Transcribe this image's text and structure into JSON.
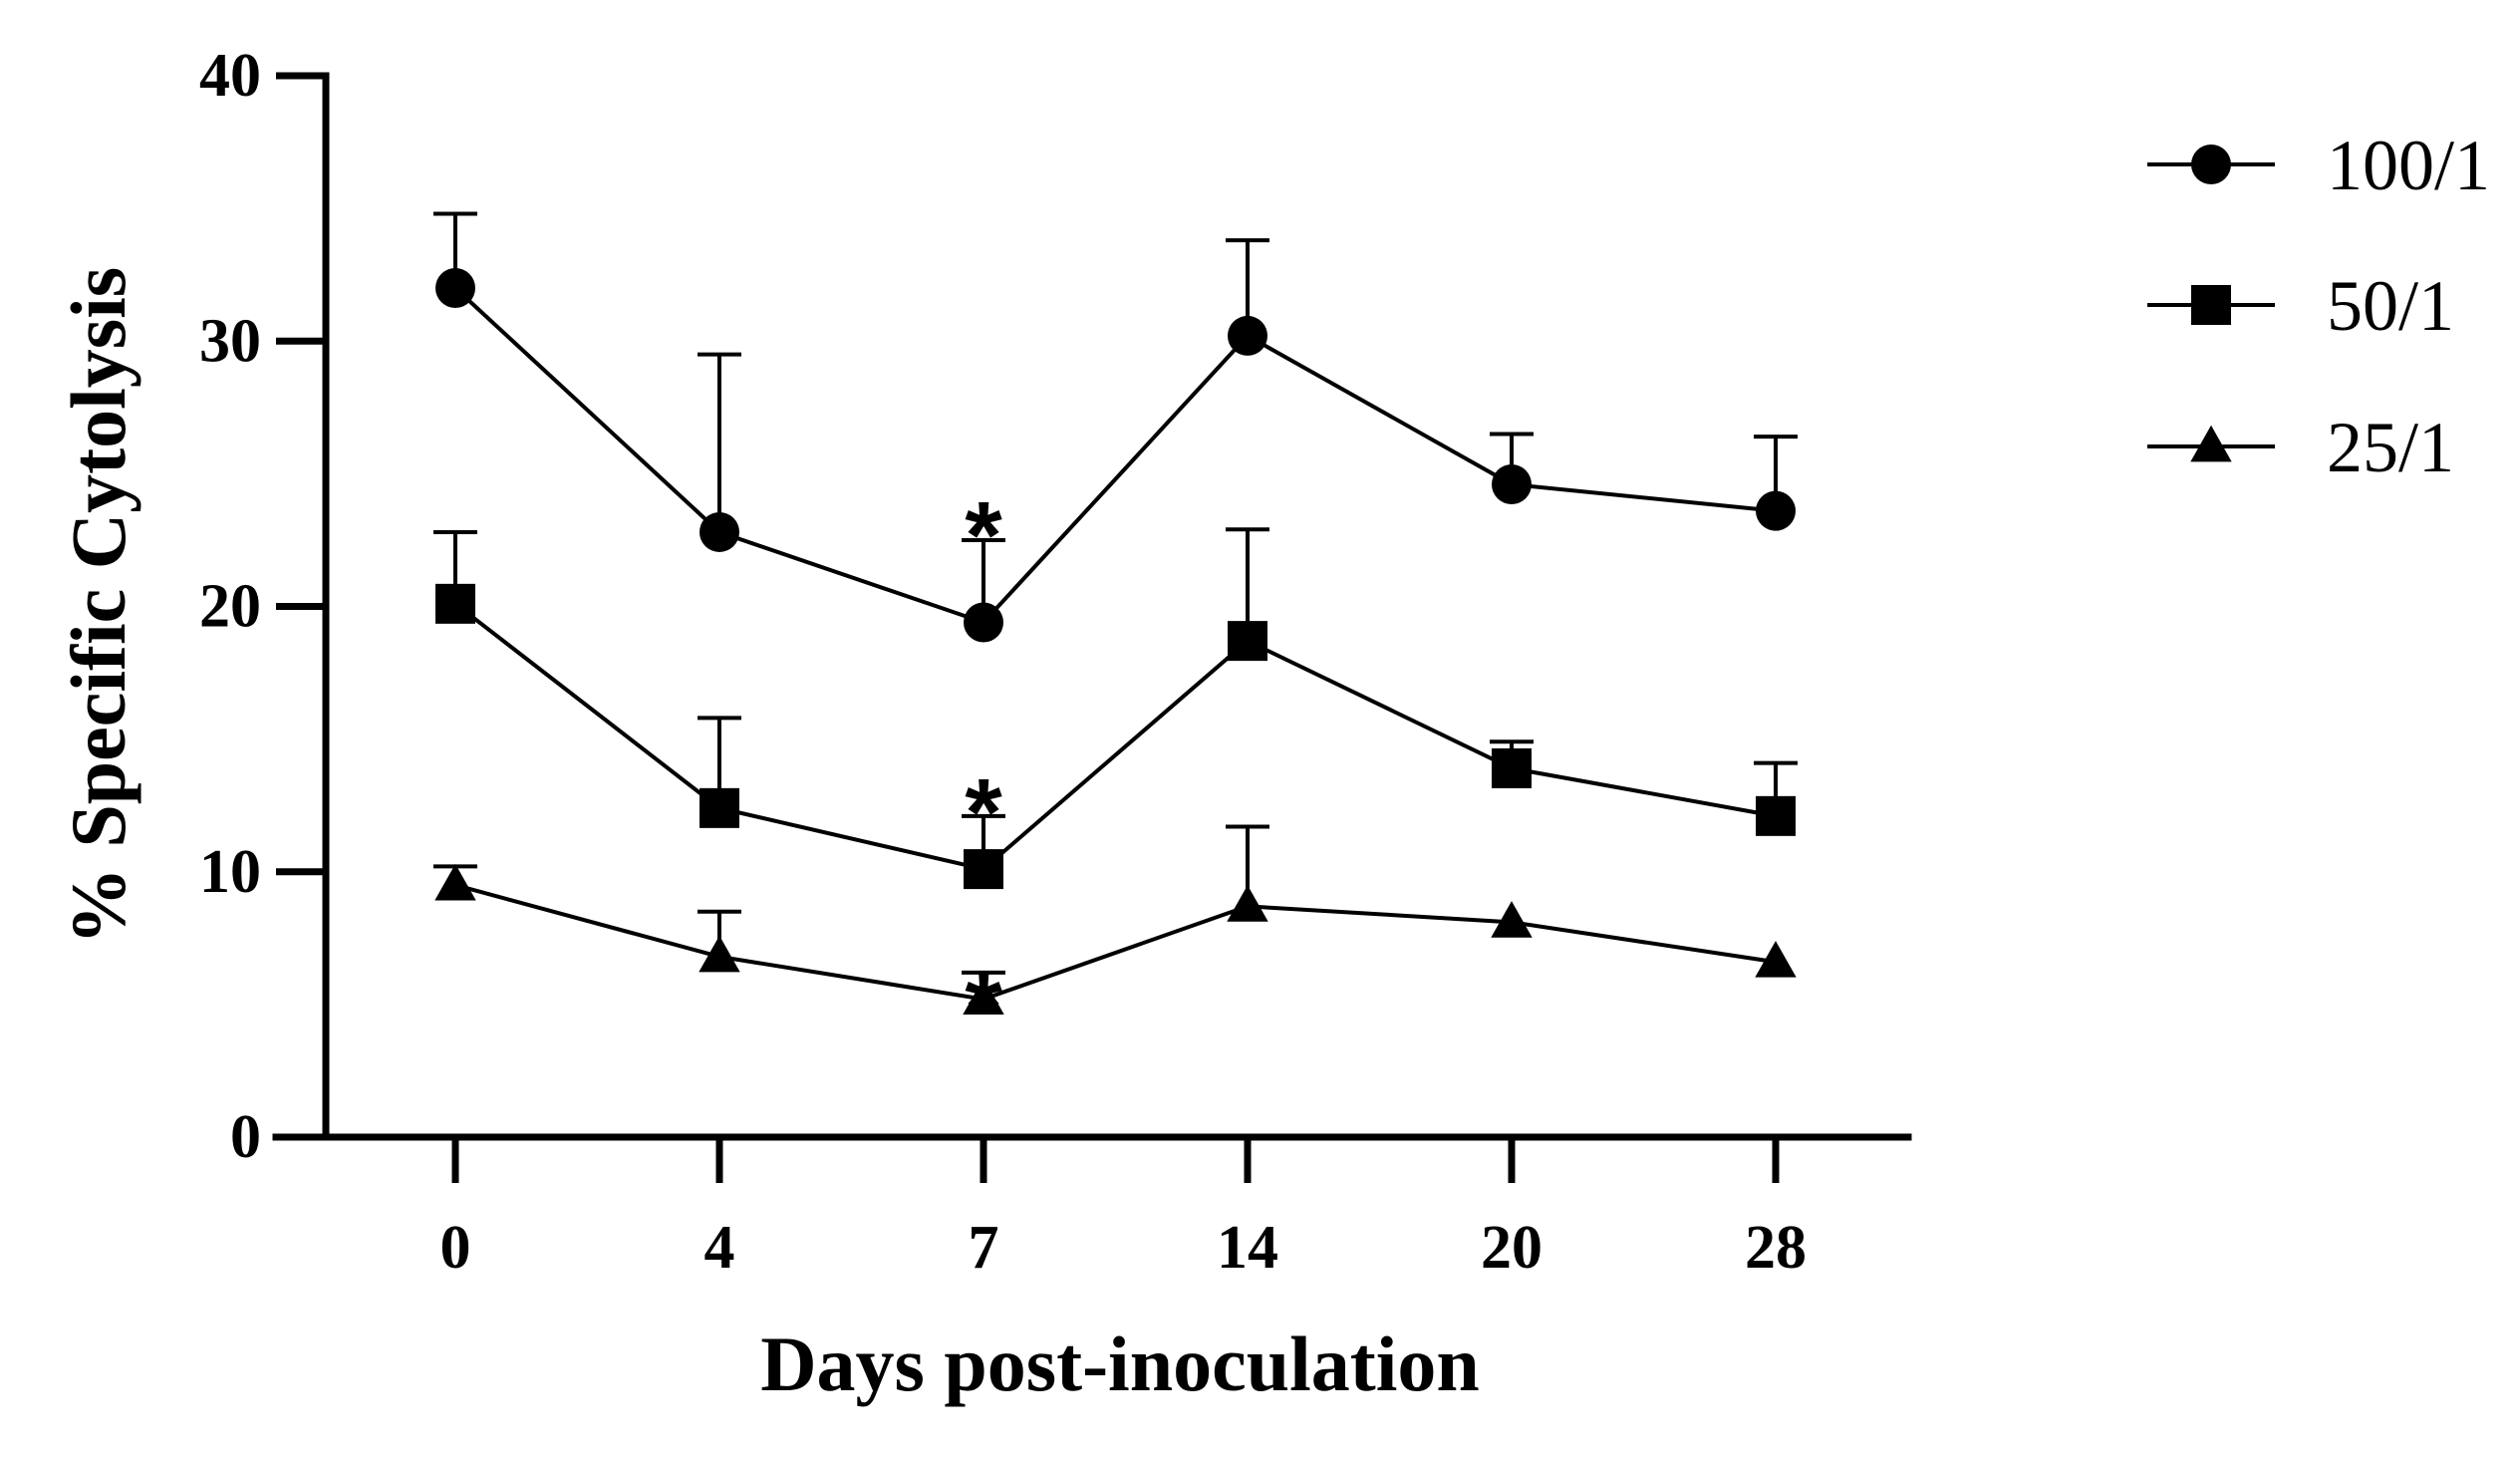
{
  "chart_data": {
    "type": "line",
    "title": "",
    "xlabel": "Days post-inoculation",
    "ylabel": "% Specific Cytolysis",
    "categories": [
      "0",
      "4",
      "7",
      "14",
      "20",
      "28"
    ],
    "ylim": [
      0,
      40
    ],
    "yticks": [
      "0",
      "10",
      "20",
      "30",
      "40"
    ],
    "grid": false,
    "legend_position": "top-right",
    "series": [
      {
        "name": "100/1",
        "marker": "circle",
        "values": [
          32.0,
          22.8,
          19.4,
          30.2,
          24.6,
          23.6
        ],
        "error_upper": [
          2.8,
          6.7,
          3.1,
          3.6,
          1.9,
          2.8
        ]
      },
      {
        "name": "50/1",
        "marker": "square",
        "values": [
          20.1,
          12.4,
          10.1,
          18.7,
          13.9,
          12.1
        ],
        "error_upper": [
          2.7,
          3.4,
          2.0,
          4.2,
          1.0,
          2.0
        ]
      },
      {
        "name": "25/1",
        "marker": "triangle",
        "values": [
          9.5,
          6.8,
          5.2,
          8.7,
          8.1,
          6.6
        ],
        "error_upper": [
          0.7,
          1.7,
          1.0,
          3.0,
          0.0,
          0.0
        ]
      }
    ],
    "annotations": [
      {
        "text": "*",
        "category": "7",
        "series": "100/1"
      },
      {
        "text": "*",
        "category": "7",
        "series": "50/1"
      },
      {
        "text": "*",
        "category": "7",
        "series": "25/1"
      }
    ]
  }
}
